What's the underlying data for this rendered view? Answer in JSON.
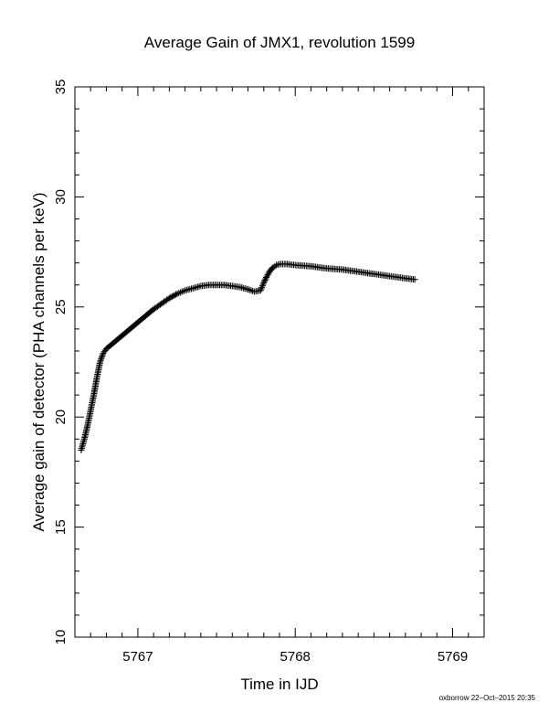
{
  "chart_data": {
    "type": "scatter",
    "title": "Average Gain of JMX1, revolution 1599",
    "xlabel": "Time in IJD",
    "ylabel": "Average gain of detector (PHA channels per keV)",
    "xlim": [
      5766.6,
      5769.2
    ],
    "ylim": [
      10,
      35
    ],
    "x_ticks": [
      5767,
      5768,
      5769
    ],
    "y_ticks": [
      10,
      15,
      20,
      25,
      30,
      35
    ],
    "grid": false,
    "marker": "plus",
    "color": "#000000",
    "series": [
      {
        "x": [
          5766.64,
          5766.66,
          5766.68,
          5766.7,
          5766.72,
          5766.74,
          5766.76,
          5766.78,
          5766.8,
          5766.85,
          5766.9,
          5766.95,
          5767.0,
          5767.05,
          5767.1,
          5767.15,
          5767.2,
          5767.25,
          5767.3,
          5767.35,
          5767.4,
          5767.45,
          5767.5,
          5767.55,
          5767.6,
          5767.65,
          5767.7,
          5767.74,
          5767.78,
          5767.8,
          5767.82,
          5767.84,
          5767.86,
          5767.88,
          5767.9,
          5767.95,
          5768.0,
          5768.1,
          5768.2,
          5768.3,
          5768.4,
          5768.5,
          5768.6,
          5768.7,
          5768.76
        ],
        "y": [
          18.5,
          19.0,
          19.6,
          20.3,
          21.0,
          21.8,
          22.5,
          22.9,
          23.1,
          23.4,
          23.7,
          24.0,
          24.3,
          24.6,
          24.9,
          25.15,
          25.4,
          25.6,
          25.75,
          25.85,
          25.95,
          26.0,
          26.0,
          26.0,
          25.95,
          25.9,
          25.8,
          25.7,
          25.75,
          26.1,
          26.4,
          26.65,
          26.8,
          26.9,
          26.95,
          26.95,
          26.9,
          26.85,
          26.75,
          26.7,
          26.6,
          26.5,
          26.4,
          26.3,
          26.25
        ]
      }
    ]
  },
  "footer": "oxborrow 22–Oct–2015 20:35"
}
